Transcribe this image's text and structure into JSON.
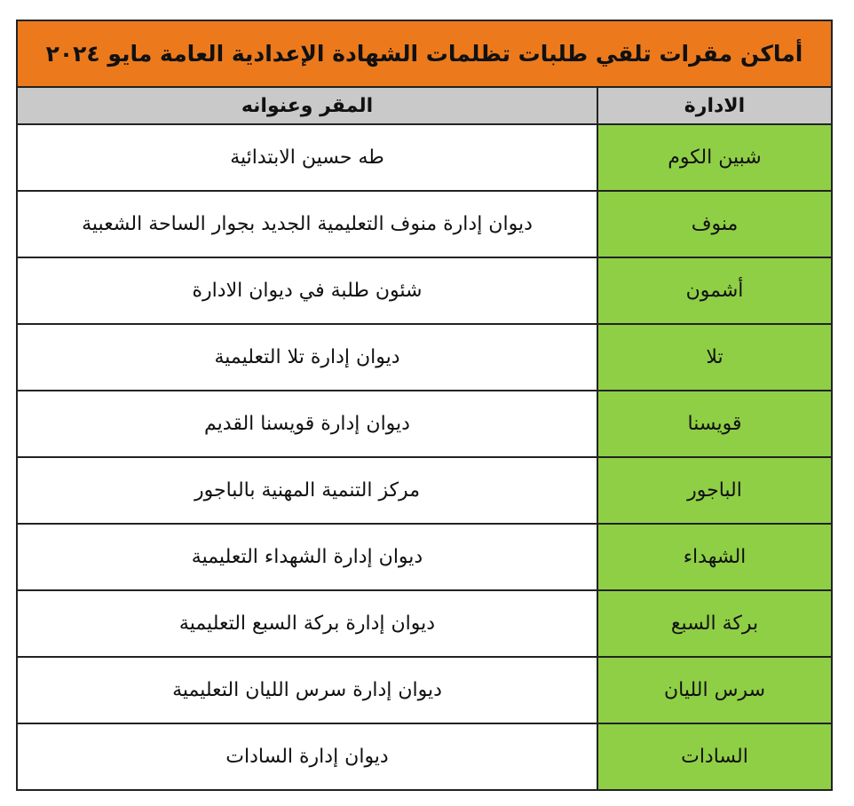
{
  "title": "أماكن مقرات تلقي طلبات تظلمات الشهادة الإعدادية العامة مايو ٢٠٢٤",
  "headers": {
    "department": "الادارة",
    "location": "المقر وعنوانه"
  },
  "colors": {
    "title_bg": "#ec7a1c",
    "header_bg": "#c9c9c9",
    "department_bg": "#8fcf45"
  },
  "rows": [
    {
      "department": "شبين الكوم",
      "location": "طه حسين الابتدائية"
    },
    {
      "department": "منوف",
      "location": "ديوان إدارة منوف التعليمية الجديد بجوار الساحة الشعبية"
    },
    {
      "department": "أشمون",
      "location": "شئون طلبة في ديوان الادارة"
    },
    {
      "department": "تلا",
      "location": "ديوان إدارة تلا التعليمية"
    },
    {
      "department": "قويسنا",
      "location": "ديوان إدارة قويسنا القديم"
    },
    {
      "department": "الباجور",
      "location": "مركز التنمية المهنية بالباجور"
    },
    {
      "department": "الشهداء",
      "location": "ديوان إدارة الشهداء التعليمية"
    },
    {
      "department": "بركة السبع",
      "location": "ديوان إدارة بركة السبع التعليمية"
    },
    {
      "department": "سرس الليان",
      "location": "ديوان إدارة سرس الليان التعليمية"
    },
    {
      "department": "السادات",
      "location": "ديوان إدارة السادات"
    }
  ]
}
